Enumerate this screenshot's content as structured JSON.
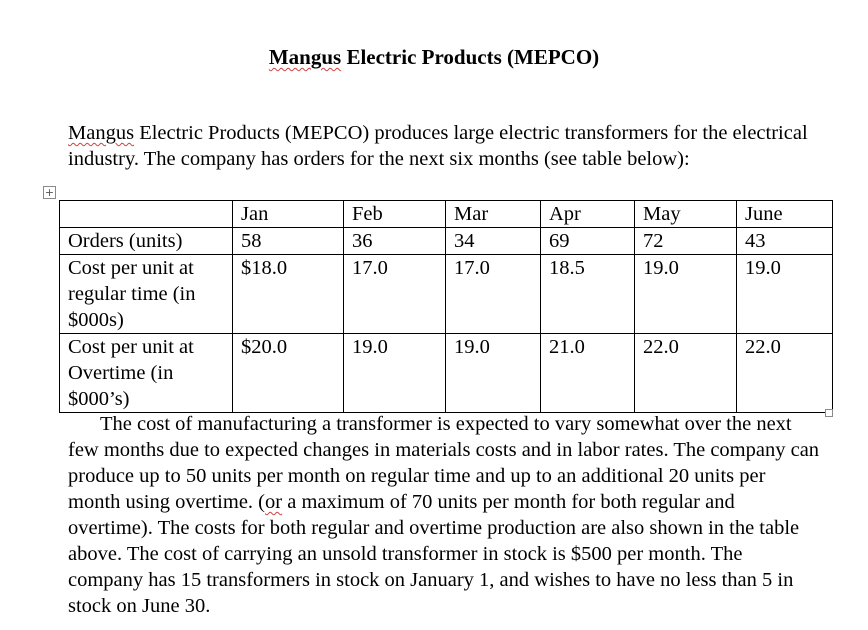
{
  "document": {
    "title": "Mangus Electric Products (MEPCO)",
    "title_underlined_word": "Mangus",
    "intro_lead": "Mangus",
    "intro_rest": " Electric Products (MEPCO) produces large electric transformers for the electrical industry. The company has orders for the next six months (see table below):",
    "table": {
      "headers": [
        "",
        "Jan",
        "Feb",
        "Mar",
        "Apr",
        "May",
        "June"
      ],
      "rows": [
        {
          "label": "Orders (units)",
          "values": [
            "58",
            "36",
            "34",
            "69",
            "72",
            "43"
          ]
        },
        {
          "label": "Cost per unit at regular time (in $000s)",
          "values": [
            "$18.0",
            "17.0",
            "17.0",
            "18.5",
            "19.0",
            "19.0"
          ]
        },
        {
          "label": "Cost per unit at Overtime (in $000’s)",
          "values": [
            "$20.0",
            "19.0",
            "19.0",
            "21.0",
            "22.0",
            "22.0"
          ]
        }
      ]
    },
    "body_part1": "The cost of manufacturing a transformer is expected to vary somewhat over the next few months due to expected changes in materials costs and in labor rates. The company can produce up to 50 units per month on regular time and up to an additional 20 units per month using overtime. (",
    "body_or": "or",
    "body_part2": " a maximum of 70 units per month for both regular and overtime). The costs for both regular and overtime production are also shown in the table above. The cost of carrying an unsold transformer in stock is $500 per month.  The company has 15 transformers in stock on January 1, and wishes to have no less than 5 in stock on June 30."
  },
  "icons": {
    "table_anchor": "table-move-handle-icon",
    "table_resize": "table-resize-handle-icon"
  },
  "colors": {
    "spellcheck_underline": "#d04040",
    "handle_border": "#8a8a8a"
  }
}
